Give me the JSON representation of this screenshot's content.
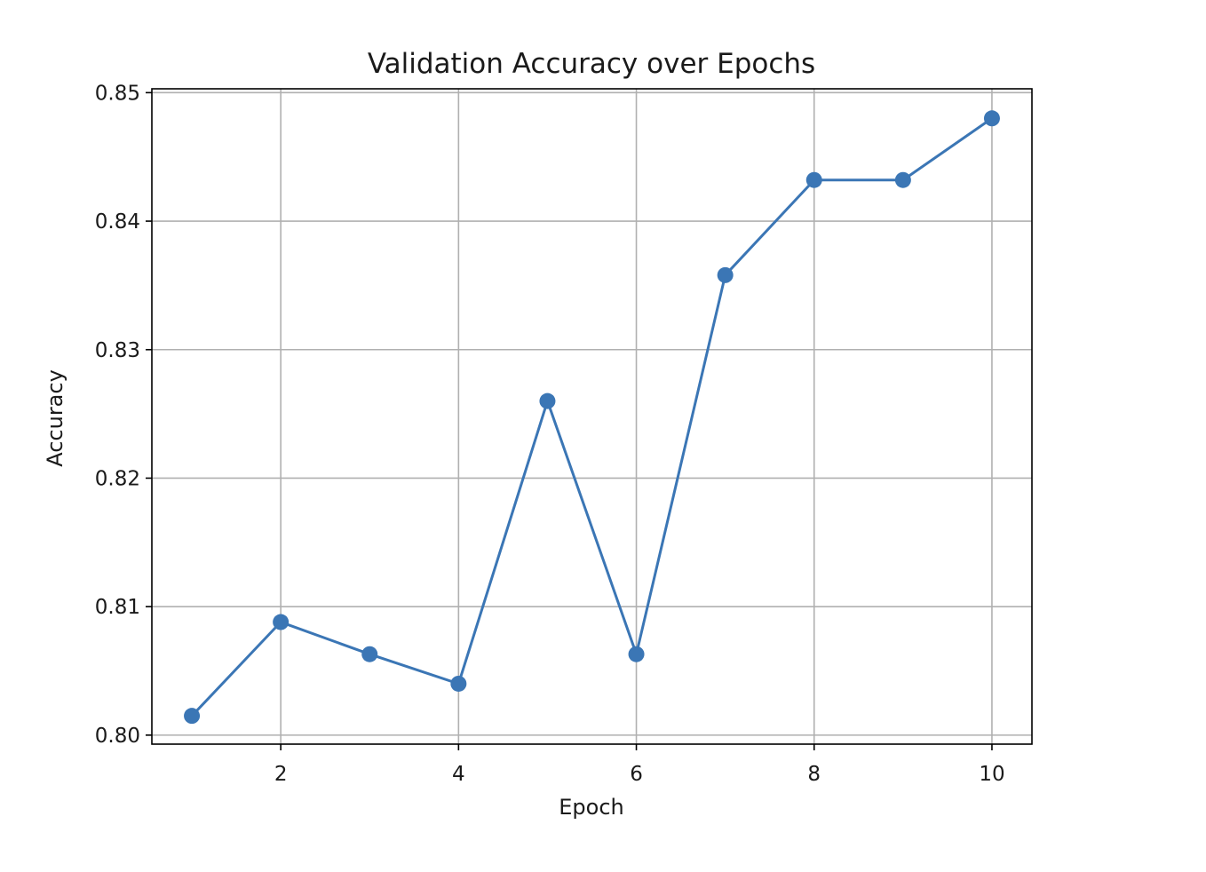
{
  "chart_data": {
    "type": "line",
    "title": "Validation Accuracy over Epochs",
    "xlabel": "Epoch",
    "ylabel": "Accuracy",
    "xlim": [
      0.55,
      10.45
    ],
    "ylim": [
      0.7993,
      0.8503
    ],
    "xticks": [
      2,
      4,
      6,
      8,
      10
    ],
    "xtick_labels": [
      "2",
      "4",
      "6",
      "8",
      "10"
    ],
    "yticks": [
      0.8,
      0.81,
      0.82,
      0.83,
      0.84,
      0.85
    ],
    "ytick_labels": [
      "0.80",
      "0.81",
      "0.82",
      "0.83",
      "0.84",
      "0.85"
    ],
    "grid": true,
    "series": [
      {
        "x": [
          1,
          2,
          3,
          4,
          5,
          6,
          7,
          8,
          9,
          10
        ],
        "values": [
          0.8015,
          0.8088,
          0.8063,
          0.804,
          0.826,
          0.8063,
          0.8358,
          0.8432,
          0.8432,
          0.848
        ],
        "color": "#3b76b5",
        "marker": "circle"
      }
    ]
  }
}
